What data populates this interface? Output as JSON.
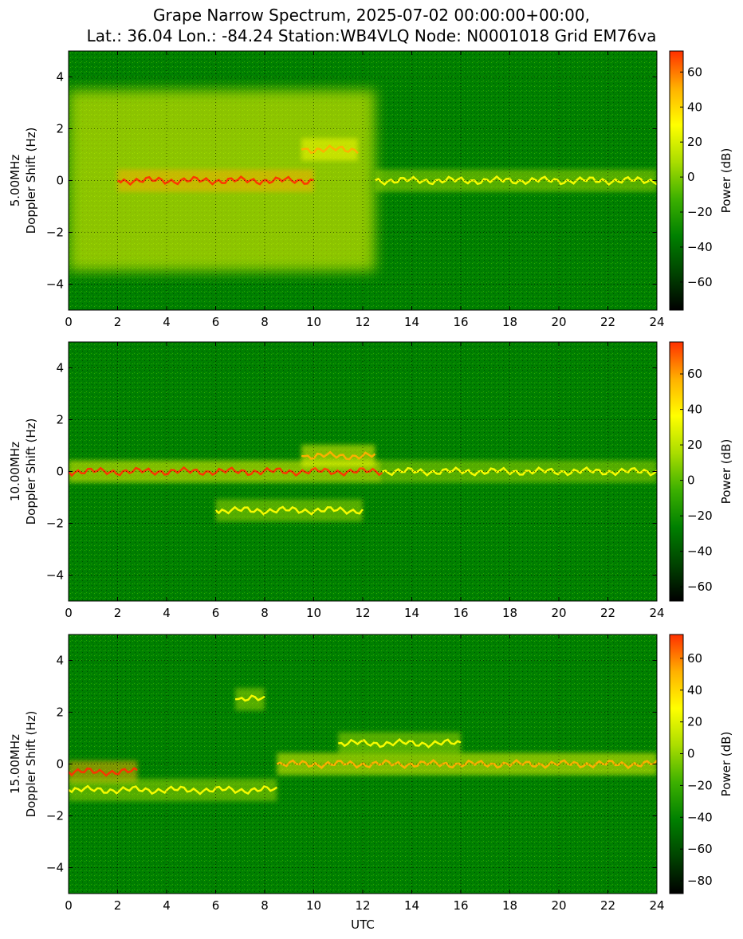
{
  "title_line1": "Grape Narrow Spectrum, 2025-07-02 00:00:00+00:00,",
  "title_line2": "Lat.: 36.04 Lon.: -84.24 Station:WB4VLQ Node: N0001018 Grid EM76va",
  "colors": {
    "colormap": [
      "#000000",
      "#004400",
      "#008000",
      "#3cb000",
      "#aadd00",
      "#ffff00",
      "#ffb000",
      "#ff3000"
    ],
    "background_green": "#008000",
    "grid": "#000000"
  },
  "chart_data": [
    {
      "type": "heatmap",
      "panel": "5.00MHz",
      "ylabel": "5.00MHz",
      "ylabel2": "Doppler Shift (Hz)",
      "xlabel": "",
      "xlim": [
        0,
        24
      ],
      "ylim": [
        -5,
        5
      ],
      "xticks": [
        0,
        2,
        4,
        6,
        8,
        10,
        12,
        14,
        16,
        18,
        20,
        22,
        24
      ],
      "yticks": [
        -4,
        -2,
        0,
        2,
        4
      ],
      "grid": true,
      "colorbar": {
        "label": "Power (dB)",
        "range": [
          -76,
          72
        ],
        "ticks": [
          60,
          40,
          20,
          0,
          -20,
          -40,
          -60
        ]
      },
      "features": [
        {
          "x_start": 0,
          "x_end": 12.5,
          "description_level": 28,
          "spread_hz": 3.5
        },
        {
          "x_start": 2,
          "x_end": 10,
          "carrier_hz": 0,
          "peak_db": 68
        },
        {
          "x_start": 9.5,
          "x_end": 11.8,
          "carrier_hz": 1.2,
          "peak_db": 55
        },
        {
          "x_start": 12.5,
          "x_end": 24,
          "carrier_hz": 0,
          "peak_db": 25
        }
      ]
    },
    {
      "type": "heatmap",
      "panel": "10.00MHz",
      "ylabel": "10.00MHz",
      "ylabel2": "Doppler Shift (Hz)",
      "xlabel": "",
      "xlim": [
        0,
        24
      ],
      "ylim": [
        -5,
        5
      ],
      "xticks": [
        0,
        2,
        4,
        6,
        8,
        10,
        12,
        14,
        16,
        18,
        20,
        22,
        24
      ],
      "yticks": [
        -4,
        -2,
        0,
        2,
        4
      ],
      "grid": true,
      "colorbar": {
        "label": "Power (dB)",
        "range": [
          -68,
          78
        ],
        "ticks": [
          60,
          40,
          20,
          0,
          -20,
          -40,
          -60
        ]
      },
      "features": [
        {
          "x_start": 0,
          "x_end": 12.8,
          "carrier_hz": 0,
          "peak_db": 70
        },
        {
          "x_start": 6,
          "x_end": 12,
          "carrier_hz": -1.5,
          "peak_db": 35
        },
        {
          "x_start": 9.5,
          "x_end": 12.5,
          "carrier_hz": 0.6,
          "peak_db": 62
        },
        {
          "x_start": 12.8,
          "x_end": 24,
          "carrier_hz": 0,
          "peak_db": 38
        }
      ]
    },
    {
      "type": "heatmap",
      "panel": "15.00MHz",
      "ylabel": "15.00MHz",
      "ylabel2": "Doppler Shift (Hz)",
      "xlabel": "UTC",
      "xlim": [
        0,
        24
      ],
      "ylim": [
        -5,
        5
      ],
      "xticks": [
        0,
        2,
        4,
        6,
        8,
        10,
        12,
        14,
        16,
        18,
        20,
        22,
        24
      ],
      "yticks": [
        -4,
        -2,
        0,
        2,
        4
      ],
      "grid": true,
      "colorbar": {
        "label": "Power (dB)",
        "range": [
          -88,
          75
        ],
        "ticks": [
          60,
          40,
          20,
          0,
          -20,
          -40,
          -60,
          -80
        ]
      },
      "features": [
        {
          "x_start": 0,
          "x_end": 2.8,
          "carrier_hz": -0.3,
          "peak_db": 70
        },
        {
          "x_start": 0,
          "x_end": 8.5,
          "carrier_hz": -1.0,
          "peak_db": 30
        },
        {
          "x_start": 6.8,
          "x_end": 8,
          "carrier_hz": 2.5,
          "peak_db": 25
        },
        {
          "x_start": 8.5,
          "x_end": 24,
          "carrier_hz": 0,
          "peak_db": 45
        },
        {
          "x_start": 11,
          "x_end": 16,
          "carrier_hz": 0.8,
          "peak_db": 30
        }
      ]
    }
  ]
}
